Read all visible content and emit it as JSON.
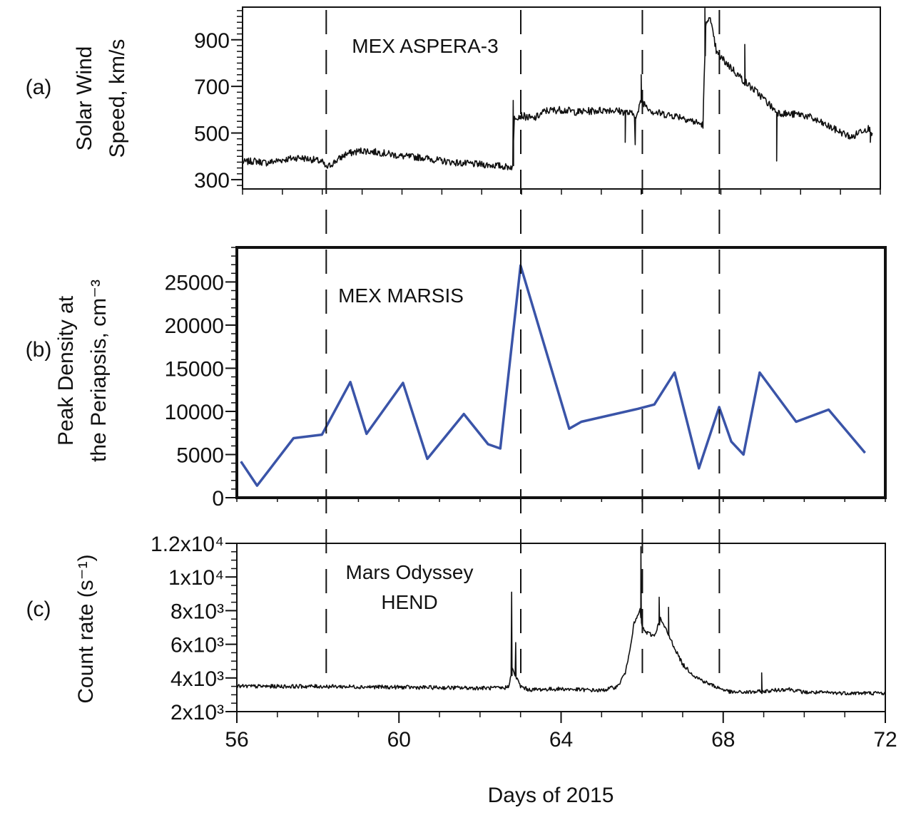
{
  "figure": {
    "xlabel": "Days of 2015",
    "x_ticks": [
      56,
      60,
      64,
      68,
      72
    ],
    "xlim": [
      56,
      72
    ],
    "event_lines_days": [
      58.1,
      62.9,
      65.9,
      67.8
    ]
  },
  "chart_data": [
    {
      "type": "line",
      "panel_label": "(a)",
      "ylabel_lines": [
        "Solar Wind",
        "Speed, km/s"
      ],
      "annotation": "MEX ASPERA-3",
      "ylim": [
        260,
        1040
      ],
      "y_ticks": [
        300,
        500,
        700,
        900
      ],
      "y_tick_labels": [
        "300",
        "500",
        "700",
        "900"
      ],
      "line_color": "#111111",
      "noise": 14,
      "series": [
        {
          "x": [
            56.0,
            56.3,
            56.6,
            57.0,
            57.4,
            57.8,
            58.0,
            58.1,
            58.3,
            58.6,
            59.0,
            59.5,
            60.0,
            60.5,
            61.0,
            61.5,
            62.0,
            62.4,
            62.6,
            62.75,
            62.78,
            62.82,
            63.0,
            63.3,
            63.6,
            64.0,
            64.4,
            64.8,
            65.2,
            65.6,
            65.9,
            66.0,
            66.3,
            66.6,
            67.0,
            67.3,
            67.55,
            67.58,
            67.62,
            67.7,
            67.9,
            68.2,
            68.6,
            69.0,
            69.4,
            69.7,
            70.0,
            70.2,
            70.8,
            71.3,
            71.5,
            71.7,
            71.8
          ],
          "values": [
            375,
            380,
            372,
            385,
            395,
            385,
            375,
            350,
            375,
            410,
            425,
            415,
            400,
            395,
            380,
            370,
            365,
            360,
            355,
            355,
            350,
            570,
            575,
            560,
            595,
            600,
            590,
            595,
            600,
            590,
            575,
            640,
            590,
            580,
            570,
            550,
            535,
            720,
            950,
            1010,
            840,
            790,
            720,
            660,
            590,
            580,
            580,
            570,
            520,
            480,
            510,
            520,
            500
          ]
        }
      ],
      "spikes": [
        {
          "x": 62.79,
          "value": 640
        },
        {
          "x": 65.6,
          "value": 460
        },
        {
          "x": 65.85,
          "value": 450
        },
        {
          "x": 66.0,
          "value": 750
        },
        {
          "x": 67.6,
          "value": 1035
        },
        {
          "x": 68.6,
          "value": 880
        },
        {
          "x": 69.4,
          "value": 380
        },
        {
          "x": 71.75,
          "value": 460
        }
      ]
    },
    {
      "type": "line",
      "panel_label": "(b)",
      "ylabel_lines": [
        "Peak Density at",
        "the Periapsis, cm⁻³"
      ],
      "annotation": "MEX MARSIS",
      "ylim": [
        0,
        29000
      ],
      "y_ticks": [
        0,
        5000,
        10000,
        15000,
        20000,
        25000
      ],
      "y_tick_labels": [
        "0",
        "5000",
        "10000",
        "15000",
        "20000",
        "25000"
      ],
      "line_color": "#3a54a8",
      "series": [
        {
          "x": [
            56.1,
            56.5,
            57.4,
            58.1,
            58.8,
            59.2,
            60.1,
            60.7,
            61.6,
            62.2,
            62.5,
            63.0,
            64.2,
            64.5,
            65.9,
            66.3,
            66.8,
            67.4,
            67.9,
            68.2,
            68.5,
            68.9,
            69.8,
            70.6,
            71.5
          ],
          "values": [
            4200,
            1400,
            6900,
            7300,
            13400,
            7400,
            13300,
            4500,
            9700,
            6200,
            5700,
            26900,
            8000,
            8800,
            10300,
            10800,
            14500,
            3400,
            10500,
            6500,
            5000,
            14500,
            8800,
            10200,
            5200
          ]
        }
      ]
    },
    {
      "type": "line",
      "panel_label": "(c)",
      "ylabel_lines": [
        "Count rate (s⁻¹)"
      ],
      "annotation_lines": [
        "Mars Odyssey",
        "HEND"
      ],
      "ylim": [
        2000,
        12000
      ],
      "y_ticks": [
        2000,
        4000,
        6000,
        8000,
        10000,
        12000
      ],
      "y_tick_labels": [
        "2x10³",
        "4x10³",
        "6x10³",
        "8x10³",
        "1x10⁴",
        "1.2x10⁴"
      ],
      "line_color": "#111111",
      "noise": 110,
      "series": [
        {
          "x": [
            56.0,
            58.0,
            60.0,
            62.0,
            62.6,
            62.7,
            62.8,
            62.9,
            63.0,
            63.2,
            64.0,
            65.0,
            65.4,
            65.6,
            65.8,
            65.95,
            66.0,
            66.1,
            66.3,
            66.45,
            66.6,
            66.8,
            67.0,
            67.3,
            67.6,
            67.9,
            68.2,
            68.6,
            69.0,
            69.6,
            70.0,
            71.0,
            72.0
          ],
          "values": [
            3500,
            3500,
            3450,
            3400,
            3400,
            3500,
            4500,
            4000,
            3500,
            3300,
            3350,
            3250,
            3500,
            4400,
            7200,
            8000,
            7000,
            6700,
            6500,
            7500,
            6800,
            5800,
            4800,
            4100,
            3700,
            3400,
            3150,
            3150,
            3200,
            3350,
            3150,
            3100,
            3100
          ]
        }
      ],
      "spikes": [
        {
          "x": 62.78,
          "value": 9100
        },
        {
          "x": 62.88,
          "value": 6100
        },
        {
          "x": 65.97,
          "value": 11800
        },
        {
          "x": 66.42,
          "value": 8800
        },
        {
          "x": 66.65,
          "value": 8200
        },
        {
          "x": 68.95,
          "value": 4300
        }
      ]
    }
  ]
}
